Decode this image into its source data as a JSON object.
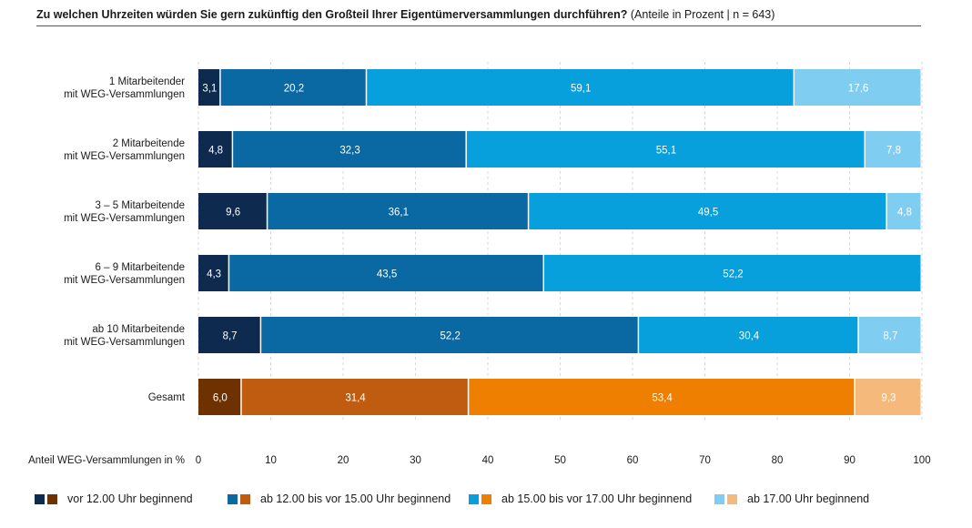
{
  "title": {
    "bold": "Zu welchen Uhrzeiten würden Sie gern zukünftig den Großteil Ihrer Eigentümerversammlungen durchführen?",
    "normal": "(Anteile in Prozent | n = 643)"
  },
  "chart_data": {
    "type": "bar",
    "orientation": "horizontal",
    "stacked": true,
    "xlabel": "Anteil WEG-Versammlungen in %",
    "xlim": [
      0,
      100
    ],
    "xticks": [
      "0",
      "10",
      "20",
      "30",
      "40",
      "50",
      "60",
      "70",
      "80",
      "90",
      "100"
    ],
    "categories": [
      [
        "1 Mitarbeitender",
        "mit WEG-Versammlungen"
      ],
      [
        "2 Mitarbeitende",
        "mit WEG-Versammlungen"
      ],
      [
        "3 – 5 Mitarbeitende",
        "mit WEG-Versammlungen"
      ],
      [
        "6 – 9 Mitarbeitende",
        "mit WEG-Versammlungen"
      ],
      [
        "ab 10 Mitarbeitende",
        "mit WEG-Versammlungen"
      ],
      [
        "Gesamt"
      ]
    ],
    "series": [
      {
        "name": "vor 12.00 Uhr beginnend",
        "values": [
          3.1,
          4.8,
          9.6,
          4.3,
          8.7,
          6.0
        ],
        "labels": [
          "3,1",
          "4,8",
          "9,6",
          "4,3",
          "8,7",
          "6,0"
        ]
      },
      {
        "name": "ab 12.00 bis vor 15.00 Uhr beginnend",
        "values": [
          20.2,
          32.3,
          36.1,
          43.5,
          52.2,
          31.4
        ],
        "labels": [
          "20,2",
          "32,3",
          "36,1",
          "43,5",
          "52,2",
          "31,4"
        ]
      },
      {
        "name": "ab 15.00 bis vor 17.00 Uhr beginnend",
        "values": [
          59.1,
          55.1,
          49.5,
          52.2,
          30.4,
          53.4
        ],
        "labels": [
          "59,1",
          "55,1",
          "49,5",
          "52,2",
          "30,4",
          "53,4"
        ]
      },
      {
        "name": "ab 17.00 Uhr beginnend",
        "values": [
          17.6,
          7.8,
          4.8,
          0,
          8.7,
          9.3
        ],
        "labels": [
          "17,6",
          "7,8",
          "4,8",
          "",
          "8,7",
          "9,3"
        ]
      }
    ],
    "colors_blue": [
      "#0e2a4e",
      "#0a68a2",
      "#079fdc",
      "#80cdf2"
    ],
    "colors_orange": [
      "#6e3200",
      "#c05c10",
      "#ee7f00",
      "#f5b97c"
    ],
    "text_colors": [
      "#ffffff",
      "#ffffff",
      "#ffffff",
      "#ffffff"
    ]
  }
}
